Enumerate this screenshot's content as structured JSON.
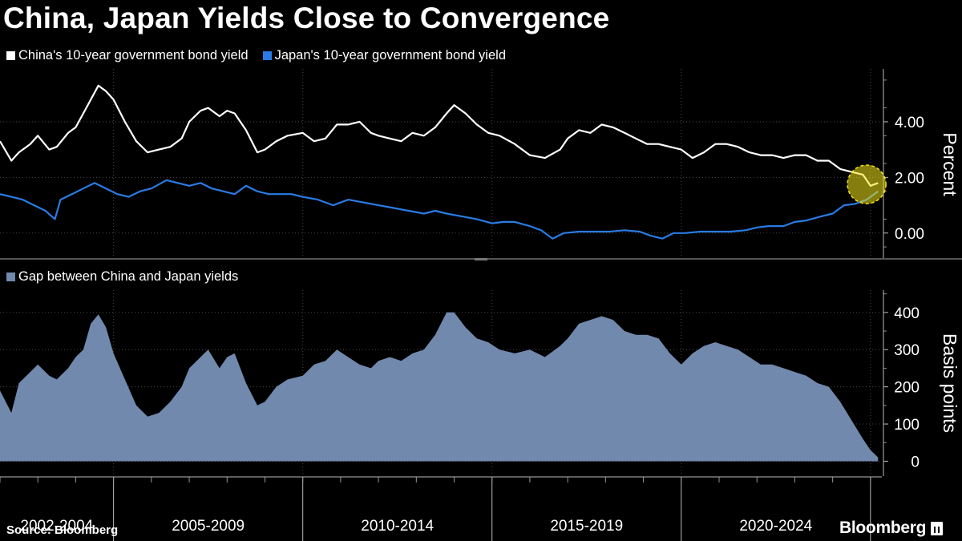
{
  "title": "China, Japan Yields Close to Convergence",
  "legend_top": [
    {
      "label": "China's 10-year government bond yield",
      "color": "#ffffff"
    },
    {
      "label": "Japan's 10-year government bond yield",
      "color": "#2a7be4"
    }
  ],
  "legend_bottom": [
    {
      "label": "Gap between China and Japan yields",
      "color": "#7189ad"
    }
  ],
  "source": "Source: Bloomberg",
  "brand": "Bloomberg",
  "chart_data": [
    {
      "type": "line",
      "title": "China, Japan Yields Close to Convergence",
      "ylabel": "Percent",
      "ylim": [
        -0.9,
        5.9
      ],
      "yticks": [
        0,
        2,
        4
      ],
      "ytick_labels": [
        "0.00",
        "2.00",
        "4.00"
      ],
      "x_unit": "year",
      "xlim": [
        2002.0,
        2025.3
      ],
      "grid": true,
      "series": [
        {
          "name": "China's 10-year government bond yield",
          "color": "#ffffff",
          "x": [
            2002.0,
            2002.3,
            2002.5,
            2002.8,
            2003.0,
            2003.3,
            2003.5,
            2003.8,
            2004.0,
            2004.2,
            2004.4,
            2004.6,
            2004.8,
            2005.0,
            2005.3,
            2005.6,
            2005.9,
            2006.2,
            2006.5,
            2006.8,
            2007.0,
            2007.3,
            2007.5,
            2007.8,
            2008.0,
            2008.2,
            2008.5,
            2008.8,
            2009.0,
            2009.3,
            2009.6,
            2010.0,
            2010.3,
            2010.6,
            2010.9,
            2011.2,
            2011.5,
            2011.8,
            2012.0,
            2012.3,
            2012.6,
            2012.9,
            2013.2,
            2013.5,
            2013.8,
            2014.0,
            2014.3,
            2014.6,
            2014.9,
            2015.2,
            2015.6,
            2016.0,
            2016.4,
            2016.8,
            2017.0,
            2017.3,
            2017.6,
            2017.9,
            2018.2,
            2018.5,
            2018.8,
            2019.1,
            2019.4,
            2019.7,
            2020.0,
            2020.3,
            2020.6,
            2020.9,
            2021.2,
            2021.5,
            2021.8,
            2022.1,
            2022.4,
            2022.7,
            2023.0,
            2023.3,
            2023.6,
            2023.9,
            2024.2,
            2024.5,
            2024.8,
            2025.0,
            2025.2
          ],
          "values": [
            3.3,
            2.6,
            2.9,
            3.2,
            3.5,
            3.0,
            3.1,
            3.6,
            3.8,
            4.3,
            4.8,
            5.3,
            5.1,
            4.8,
            4.0,
            3.3,
            2.9,
            3.0,
            3.1,
            3.4,
            4.0,
            4.4,
            4.5,
            4.2,
            4.4,
            4.3,
            3.7,
            2.9,
            3.0,
            3.3,
            3.5,
            3.6,
            3.3,
            3.4,
            3.9,
            3.9,
            4.0,
            3.6,
            3.5,
            3.4,
            3.3,
            3.6,
            3.5,
            3.8,
            4.3,
            4.6,
            4.3,
            3.9,
            3.6,
            3.5,
            3.2,
            2.8,
            2.7,
            3.0,
            3.4,
            3.7,
            3.6,
            3.9,
            3.8,
            3.6,
            3.4,
            3.2,
            3.2,
            3.1,
            3.0,
            2.7,
            2.9,
            3.2,
            3.2,
            3.1,
            2.9,
            2.8,
            2.8,
            2.7,
            2.8,
            2.8,
            2.6,
            2.6,
            2.3,
            2.2,
            2.1,
            1.7,
            1.8
          ]
        },
        {
          "name": "Japan's 10-year government bond yield",
          "color": "#2a7be4",
          "x": [
            2002.0,
            2002.3,
            2002.6,
            2002.9,
            2003.2,
            2003.45,
            2003.6,
            2003.9,
            2004.2,
            2004.5,
            2004.8,
            2005.1,
            2005.4,
            2005.7,
            2006.0,
            2006.4,
            2006.7,
            2007.0,
            2007.3,
            2007.6,
            2007.9,
            2008.2,
            2008.5,
            2008.8,
            2009.1,
            2009.4,
            2009.7,
            2010.0,
            2010.4,
            2010.8,
            2011.2,
            2011.6,
            2012.0,
            2012.4,
            2012.8,
            2013.2,
            2013.5,
            2013.8,
            2014.2,
            2014.6,
            2015.0,
            2015.3,
            2015.6,
            2016.0,
            2016.3,
            2016.6,
            2016.9,
            2017.3,
            2017.7,
            2018.1,
            2018.5,
            2018.9,
            2019.2,
            2019.5,
            2019.8,
            2020.1,
            2020.5,
            2020.9,
            2021.3,
            2021.7,
            2022.0,
            2022.3,
            2022.7,
            2023.0,
            2023.3,
            2023.7,
            2024.0,
            2024.3,
            2024.6,
            2024.9,
            2025.2
          ],
          "values": [
            1.4,
            1.3,
            1.2,
            1.0,
            0.8,
            0.5,
            1.2,
            1.4,
            1.6,
            1.8,
            1.6,
            1.4,
            1.3,
            1.5,
            1.6,
            1.9,
            1.8,
            1.7,
            1.8,
            1.6,
            1.5,
            1.4,
            1.7,
            1.5,
            1.4,
            1.4,
            1.4,
            1.3,
            1.2,
            1.0,
            1.2,
            1.1,
            1.0,
            0.9,
            0.8,
            0.7,
            0.8,
            0.7,
            0.6,
            0.5,
            0.35,
            0.4,
            0.4,
            0.25,
            0.1,
            -0.2,
            0.0,
            0.05,
            0.05,
            0.05,
            0.1,
            0.05,
            -0.1,
            -0.2,
            0.0,
            0.0,
            0.05,
            0.05,
            0.05,
            0.1,
            0.2,
            0.25,
            0.25,
            0.4,
            0.45,
            0.6,
            0.7,
            1.0,
            1.05,
            1.2,
            1.5
          ]
        }
      ],
      "annotations": [
        {
          "type": "highlight-circle",
          "x": 2024.9,
          "y": 1.75,
          "color": "#f2e41a"
        }
      ]
    },
    {
      "type": "area",
      "title": "Gap between China and Japan yields",
      "ylabel": "Basis points",
      "ylim": [
        -40,
        460
      ],
      "yticks": [
        0,
        100,
        200,
        300,
        400
      ],
      "ytick_labels": [
        "0",
        "100",
        "200",
        "300",
        "400"
      ],
      "x_unit": "year",
      "xlim": [
        2002.0,
        2025.3
      ],
      "grid": true,
      "series": [
        {
          "name": "Gap between China and Japan yields",
          "color": "#7189ad",
          "x": [
            2002.0,
            2002.3,
            2002.5,
            2002.8,
            2003.0,
            2003.3,
            2003.5,
            2003.8,
            2004.0,
            2004.2,
            2004.4,
            2004.6,
            2004.8,
            2005.0,
            2005.3,
            2005.6,
            2005.9,
            2006.2,
            2006.5,
            2006.8,
            2007.0,
            2007.3,
            2007.5,
            2007.8,
            2008.0,
            2008.2,
            2008.5,
            2008.8,
            2009.0,
            2009.3,
            2009.6,
            2010.0,
            2010.3,
            2010.6,
            2010.9,
            2011.2,
            2011.5,
            2011.8,
            2012.0,
            2012.3,
            2012.6,
            2012.9,
            2013.2,
            2013.5,
            2013.8,
            2014.0,
            2014.3,
            2014.6,
            2014.9,
            2015.2,
            2015.6,
            2016.0,
            2016.4,
            2016.8,
            2017.0,
            2017.3,
            2017.6,
            2017.9,
            2018.2,
            2018.5,
            2018.8,
            2019.1,
            2019.4,
            2019.7,
            2020.0,
            2020.3,
            2020.6,
            2020.9,
            2021.2,
            2021.5,
            2021.8,
            2022.1,
            2022.4,
            2022.7,
            2023.0,
            2023.3,
            2023.6,
            2023.9,
            2024.2,
            2024.5,
            2024.8,
            2025.0,
            2025.2
          ],
          "values": [
            190,
            130,
            210,
            240,
            260,
            230,
            220,
            250,
            280,
            300,
            370,
            395,
            360,
            290,
            220,
            150,
            120,
            130,
            160,
            200,
            250,
            280,
            300,
            250,
            280,
            290,
            210,
            150,
            160,
            200,
            220,
            230,
            260,
            270,
            300,
            280,
            260,
            250,
            270,
            280,
            270,
            290,
            300,
            340,
            400,
            400,
            360,
            330,
            320,
            300,
            290,
            300,
            280,
            310,
            330,
            370,
            380,
            390,
            380,
            350,
            340,
            340,
            330,
            290,
            260,
            290,
            310,
            320,
            310,
            300,
            280,
            260,
            260,
            250,
            240,
            230,
            210,
            200,
            160,
            110,
            60,
            30,
            10
          ]
        }
      ]
    }
  ],
  "x_axis": {
    "tick_labels": [
      "2002-2004",
      "2005-2009",
      "2010-2014",
      "2015-2019",
      "2020-2024"
    ],
    "label_centers": [
      2003.5,
      2007.5,
      2012.5,
      2017.5,
      2022.5
    ],
    "major_ticks": [
      2005,
      2010,
      2015,
      2020,
      2025
    ]
  }
}
